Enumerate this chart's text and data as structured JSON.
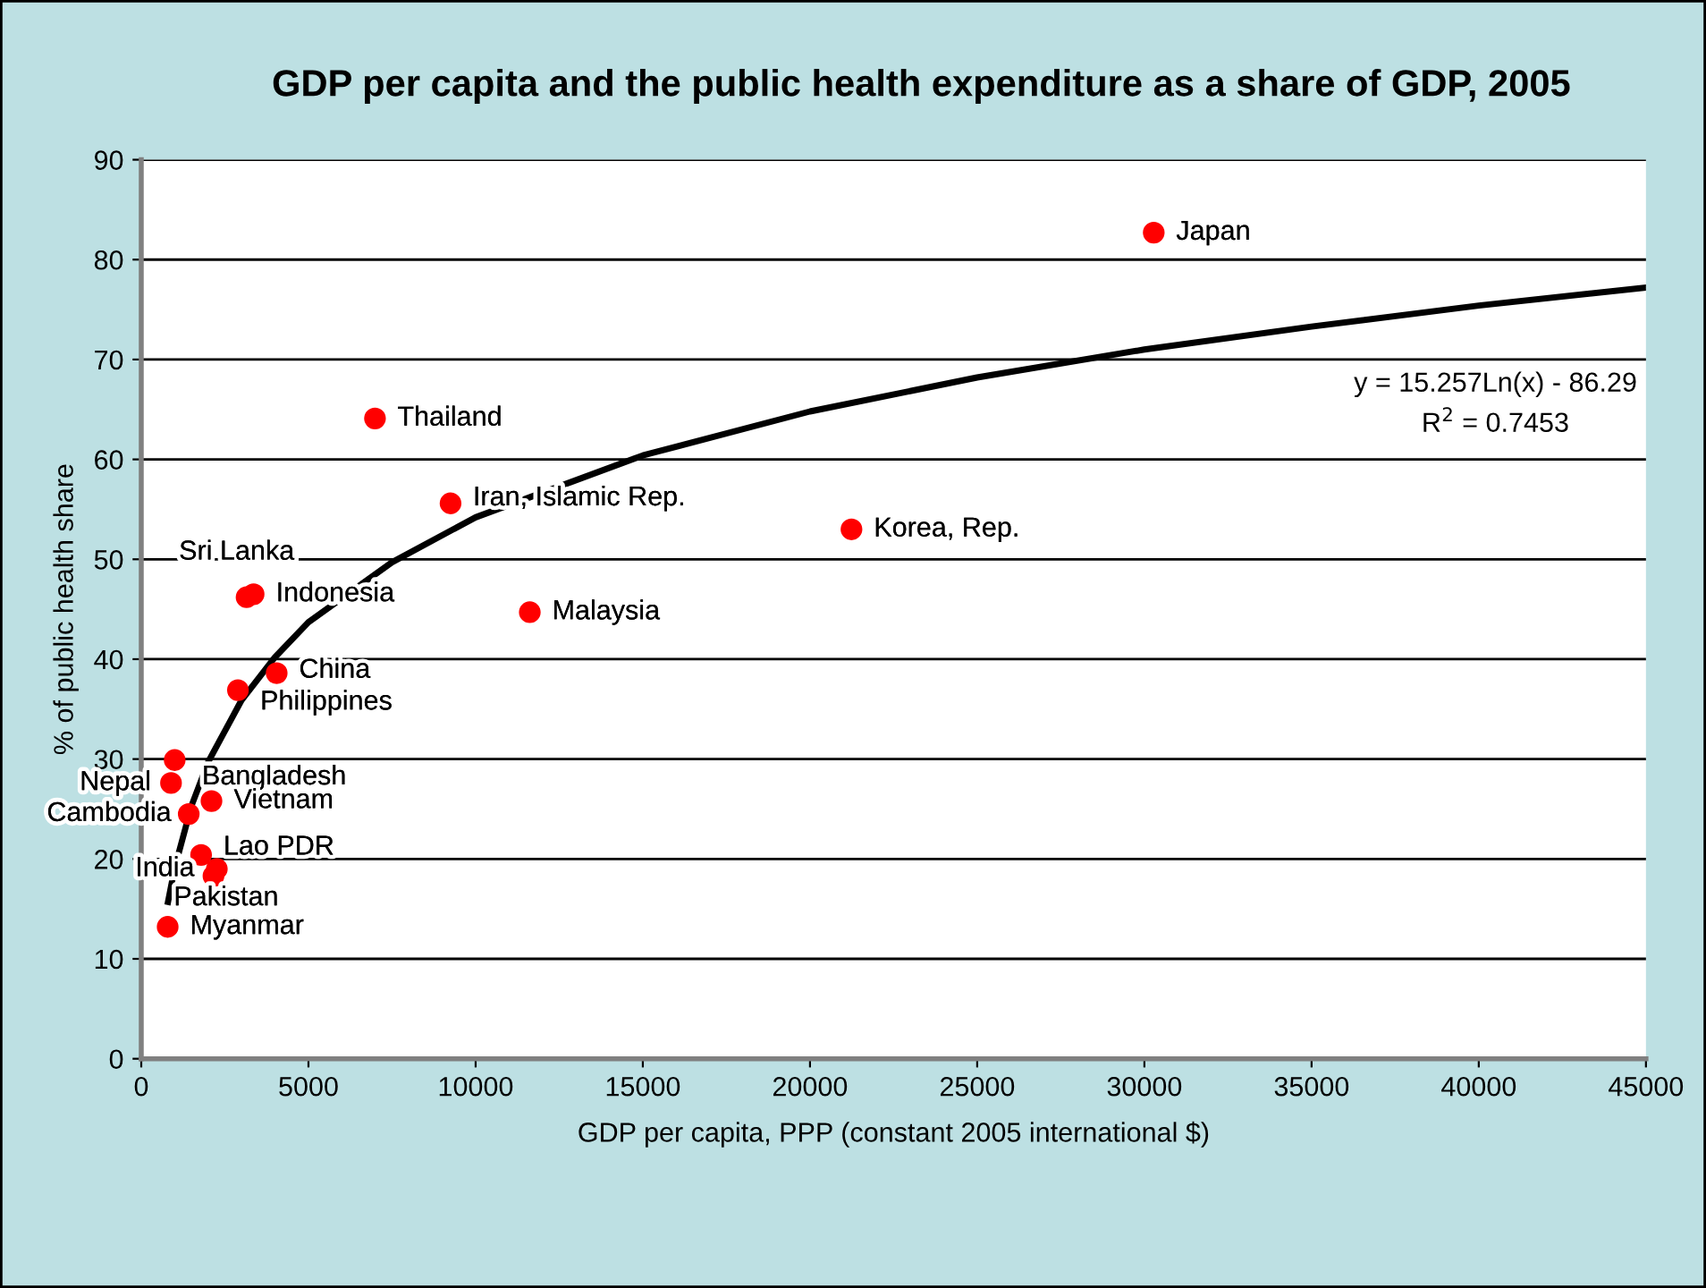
{
  "chart_data": {
    "type": "scatter",
    "title": "GDP per capita and the public health expenditure as a share of GDP, 2005",
    "xlabel": "GDP per capita, PPP (constant 2005 international $)",
    "ylabel": "% of public health share",
    "xlim": [
      0,
      45000
    ],
    "xticks": [
      0,
      5000,
      10000,
      15000,
      20000,
      25000,
      30000,
      35000,
      40000,
      45000
    ],
    "ylim": [
      0,
      90
    ],
    "yticks": [
      0,
      10,
      20,
      30,
      40,
      50,
      60,
      70,
      80,
      90
    ],
    "grid": "y",
    "series": [
      {
        "marker": "circle",
        "color": "#ff0000",
        "x": [
          30280,
          6990,
          9250,
          21240,
          3150,
          3360,
          11620,
          4050,
          2890,
          1000,
          890,
          1420,
          2100,
          1790,
          2260,
          2160,
          790
        ],
        "values": [
          82.7,
          64.1,
          55.6,
          53.0,
          46.2,
          46.5,
          44.7,
          38.6,
          36.9,
          29.9,
          27.6,
          24.5,
          25.8,
          20.4,
          19.0,
          18.3,
          13.2
        ]
      },
      {
        "type": "line",
        "marker": "none",
        "color": "#000000",
        "line_style": "solid",
        "x": [
          800,
          1000,
          1500,
          2000,
          3000,
          4000,
          5000,
          7500,
          10000,
          15000,
          20000,
          25000,
          30000,
          35000,
          40000,
          45000
        ],
        "values": [
          15.7,
          19.1,
          25.3,
          29.7,
          35.9,
          40.2,
          43.7,
          49.7,
          54.2,
          60.4,
          64.8,
          68.2,
          71.0,
          73.3,
          75.4,
          77.2
        ]
      }
    ],
    "annotations": [
      {
        "text": "Japan",
        "x": 30280,
        "y": 82.7
      },
      {
        "text": "Thailand",
        "x": 6990,
        "y": 64.1
      },
      {
        "text": "Iran, Islamic Rep.",
        "x": 9250,
        "y": 55.6
      },
      {
        "text": "Korea, Rep.",
        "x": 21240,
        "y": 53.0
      },
      {
        "text": "Sri Lanka",
        "x": 3150,
        "y": 46.2
      },
      {
        "text": "Indonesia",
        "x": 3360,
        "y": 46.5
      },
      {
        "text": "Malaysia",
        "x": 11620,
        "y": 44.7
      },
      {
        "text": "China",
        "x": 4050,
        "y": 38.6
      },
      {
        "text": "Philippines",
        "x": 2890,
        "y": 36.9
      },
      {
        "text": "Bangladesh",
        "x": 1000,
        "y": 29.9
      },
      {
        "text": "Nepal",
        "x": 890,
        "y": 27.6
      },
      {
        "text": "Cambodia",
        "x": 1420,
        "y": 24.5
      },
      {
        "text": "Vietnam",
        "x": 2100,
        "y": 25.8
      },
      {
        "text": "Lao PDR",
        "x": 1790,
        "y": 20.4
      },
      {
        "text": "India",
        "x": 2260,
        "y": 19.0
      },
      {
        "text": "Pakistan",
        "x": 2160,
        "y": 18.3
      },
      {
        "text": "Myanmar",
        "x": 790,
        "y": 13.2
      },
      "y = 15.257Ln(x) - 86.29",
      "R$^{2}$ = 0.7453"
    ]
  }
}
